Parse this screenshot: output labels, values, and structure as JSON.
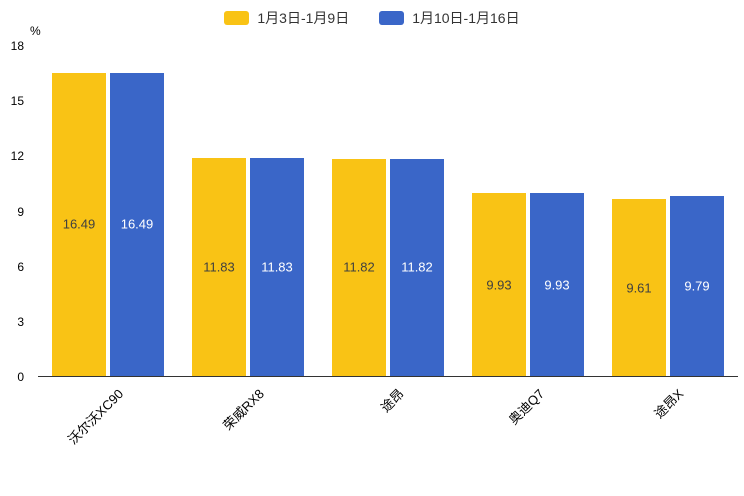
{
  "legend": {
    "items": [
      {
        "label": "1月3日-1月9日"
      },
      {
        "label": "1月10日-1月16日"
      }
    ]
  },
  "chart_data": {
    "type": "bar",
    "title": "",
    "ylabel": "%",
    "categories": [
      "沃尔沃XC90",
      "荣威RX8",
      "途昂",
      "奥迪Q7",
      "途昂X"
    ],
    "series": [
      {
        "name": "1月3日-1月9日",
        "color": "#F9C315",
        "label_color": "#404040",
        "values": [
          16.49,
          11.83,
          11.82,
          9.93,
          9.61
        ]
      },
      {
        "name": "1月10日-1月16日",
        "color": "#3A66C8",
        "label_color": "#FFFFFF",
        "values": [
          16.49,
          11.83,
          11.82,
          9.93,
          9.79
        ]
      }
    ],
    "ylim": [
      0,
      18
    ],
    "y_ticks": [
      0,
      3,
      6,
      9,
      12,
      15,
      18
    ],
    "grid": false,
    "legend_position": "top"
  }
}
